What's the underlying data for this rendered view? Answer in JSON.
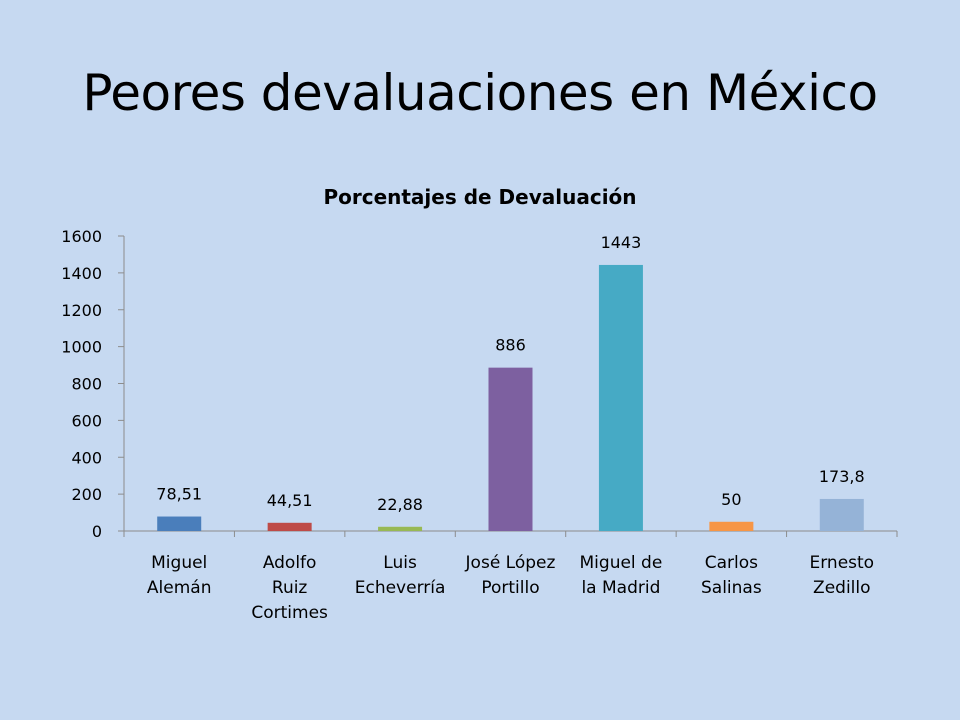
{
  "slide": {
    "title": "Peores devaluaciones en México"
  },
  "chart_data": {
    "type": "bar",
    "title": "Porcentajes de Devaluación",
    "xlabel": "",
    "ylabel": "",
    "ylim": [
      0,
      1600
    ],
    "yticks": [
      "0",
      "200",
      "400",
      "600",
      "800",
      "1000",
      "1200",
      "1400",
      "1600"
    ],
    "grid": false,
    "legend": "none",
    "categories": [
      [
        "Miguel",
        "Alemán"
      ],
      [
        "Adolfo",
        "Ruiz",
        "Cortimes"
      ],
      [
        "Luis",
        "Echeverría"
      ],
      [
        "José López",
        "Portillo"
      ],
      [
        "Miguel de",
        "la Madrid"
      ],
      [
        "Carlos",
        "Salinas"
      ],
      [
        "Ernesto",
        "Zedillo"
      ]
    ],
    "values": [
      78.51,
      44.51,
      22.88,
      886,
      1443,
      50,
      173.8
    ],
    "data_labels": [
      "78,51",
      "44,51",
      "22,88",
      "886",
      "1443",
      "50",
      "173,8"
    ],
    "colors": [
      "#4a7ebb",
      "#be4b48",
      "#98b954",
      "#7d60a0",
      "#46aac5",
      "#f79646",
      "#95b3d7"
    ]
  }
}
